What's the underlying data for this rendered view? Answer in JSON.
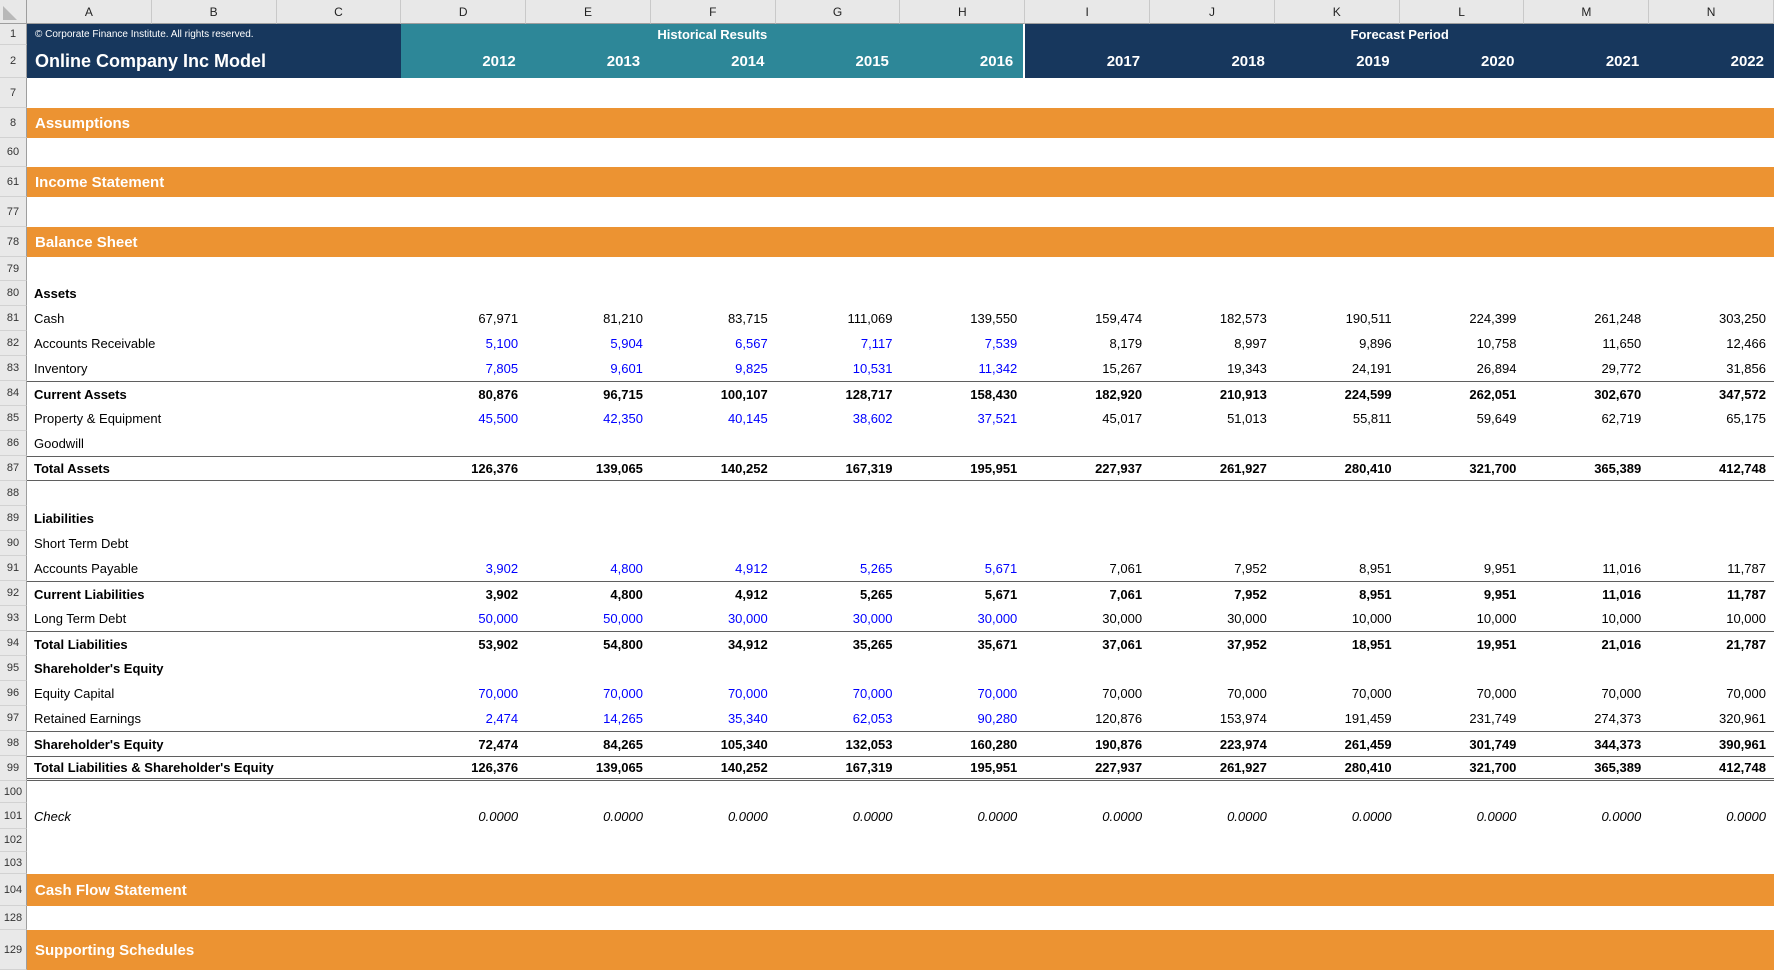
{
  "columns": [
    "A",
    "B",
    "C",
    "D",
    "E",
    "F",
    "G",
    "H",
    "I",
    "J",
    "K",
    "L",
    "M",
    "N"
  ],
  "header": {
    "row1_num": "1",
    "row2_num": "2",
    "copyright": "© Corporate Finance Institute. All rights reserved.",
    "title": "Online Company Inc Model",
    "historical_label": "Historical Results",
    "forecast_label": "Forecast Period",
    "historical_years": [
      "2012",
      "2013",
      "2014",
      "2015",
      "2016"
    ],
    "forecast_years": [
      "2017",
      "2018",
      "2019",
      "2020",
      "2021",
      "2022"
    ]
  },
  "colors": {
    "navy": "#17375D",
    "teal": "#2D8798",
    "orange": "#EC9332",
    "input_blue": "#0000FF"
  },
  "rows": [
    {
      "num": "7",
      "kind": "blank"
    },
    {
      "num": "8",
      "kind": "section",
      "label": "Assumptions"
    },
    {
      "num": "60",
      "kind": "blank"
    },
    {
      "num": "61",
      "kind": "section",
      "label": "Income Statement"
    },
    {
      "num": "77",
      "kind": "blank"
    },
    {
      "num": "78",
      "kind": "section",
      "label": "Balance Sheet"
    },
    {
      "num": "79",
      "kind": "blank"
    },
    {
      "num": "80",
      "kind": "group",
      "label": "Assets"
    },
    {
      "num": "81",
      "kind": "data",
      "label": "Cash",
      "hist_blue": false,
      "values": [
        "67,971",
        "81,210",
        "83,715",
        "111,069",
        "139,550",
        "159,474",
        "182,573",
        "190,511",
        "224,399",
        "261,248",
        "303,250"
      ]
    },
    {
      "num": "82",
      "kind": "data",
      "label": "Accounts Receivable",
      "hist_blue": true,
      "values": [
        "5,100",
        "5,904",
        "6,567",
        "7,117",
        "7,539",
        "8,179",
        "8,997",
        "9,896",
        "10,758",
        "11,650",
        "12,466"
      ]
    },
    {
      "num": "83",
      "kind": "data",
      "label": "Inventory",
      "hist_blue": true,
      "values": [
        "7,805",
        "9,601",
        "9,825",
        "10,531",
        "11,342",
        "15,267",
        "19,343",
        "24,191",
        "26,894",
        "29,772",
        "31,856"
      ]
    },
    {
      "num": "84",
      "kind": "total",
      "border": "top",
      "label": "Current Assets",
      "values": [
        "80,876",
        "96,715",
        "100,107",
        "128,717",
        "158,430",
        "182,920",
        "210,913",
        "224,599",
        "262,051",
        "302,670",
        "347,572"
      ]
    },
    {
      "num": "85",
      "kind": "data",
      "label": "Property & Equipment",
      "hist_blue": true,
      "values": [
        "45,500",
        "42,350",
        "40,145",
        "38,602",
        "37,521",
        "45,017",
        "51,013",
        "55,811",
        "59,649",
        "62,719",
        "65,175"
      ]
    },
    {
      "num": "86",
      "kind": "data",
      "label": "Goodwill",
      "hist_blue": false,
      "values": [
        "",
        "",
        "",
        "",
        "",
        "",
        "",
        "",
        "",
        "",
        ""
      ]
    },
    {
      "num": "87",
      "kind": "total",
      "border": "topbottom",
      "label": "Total Assets",
      "values": [
        "126,376",
        "139,065",
        "140,252",
        "167,319",
        "195,951",
        "227,937",
        "261,927",
        "280,410",
        "321,700",
        "365,389",
        "412,748"
      ]
    },
    {
      "num": "88",
      "kind": "blank"
    },
    {
      "num": "89",
      "kind": "group",
      "label": "Liabilities"
    },
    {
      "num": "90",
      "kind": "data",
      "label": "Short Term Debt",
      "hist_blue": false,
      "values": [
        "",
        "",
        "",
        "",
        "",
        "",
        "",
        "",
        "",
        "",
        ""
      ]
    },
    {
      "num": "91",
      "kind": "data",
      "label": "Accounts Payable",
      "hist_blue": true,
      "values": [
        "3,902",
        "4,800",
        "4,912",
        "5,265",
        "5,671",
        "7,061",
        "7,952",
        "8,951",
        "9,951",
        "11,016",
        "11,787"
      ]
    },
    {
      "num": "92",
      "kind": "total",
      "border": "top",
      "label": "Current Liabilities",
      "values": [
        "3,902",
        "4,800",
        "4,912",
        "5,265",
        "5,671",
        "7,061",
        "7,952",
        "8,951",
        "9,951",
        "11,016",
        "11,787"
      ]
    },
    {
      "num": "93",
      "kind": "data",
      "label": "Long Term Debt",
      "hist_blue": true,
      "values": [
        "50,000",
        "50,000",
        "30,000",
        "30,000",
        "30,000",
        "30,000",
        "30,000",
        "10,000",
        "10,000",
        "10,000",
        "10,000"
      ]
    },
    {
      "num": "94",
      "kind": "total",
      "border": "top",
      "label": "Total Liabilities",
      "values": [
        "53,902",
        "54,800",
        "34,912",
        "35,265",
        "35,671",
        "37,061",
        "37,952",
        "18,951",
        "19,951",
        "21,016",
        "21,787"
      ]
    },
    {
      "num": "95",
      "kind": "group",
      "label": "Shareholder's Equity"
    },
    {
      "num": "96",
      "kind": "data",
      "label": "Equity Capital",
      "hist_blue": true,
      "values": [
        "70,000",
        "70,000",
        "70,000",
        "70,000",
        "70,000",
        "70,000",
        "70,000",
        "70,000",
        "70,000",
        "70,000",
        "70,000"
      ]
    },
    {
      "num": "97",
      "kind": "data",
      "label": "Retained Earnings",
      "hist_blue": true,
      "values": [
        "2,474",
        "14,265",
        "35,340",
        "62,053",
        "90,280",
        "120,876",
        "153,974",
        "191,459",
        "231,749",
        "274,373",
        "320,961"
      ]
    },
    {
      "num": "98",
      "kind": "total",
      "border": "top",
      "label": "Shareholder's Equity",
      "values": [
        "72,474",
        "84,265",
        "105,340",
        "132,053",
        "160,280",
        "190,876",
        "223,974",
        "261,459",
        "301,749",
        "344,373",
        "390,961"
      ]
    },
    {
      "num": "99",
      "kind": "total",
      "border": "grand",
      "label": "Total Liabilities & Shareholder's Equity",
      "values": [
        "126,376",
        "139,065",
        "140,252",
        "167,319",
        "195,951",
        "227,937",
        "261,927",
        "280,410",
        "321,700",
        "365,389",
        "412,748"
      ]
    },
    {
      "num": "100",
      "kind": "blank"
    },
    {
      "num": "101",
      "kind": "check",
      "label": "Check",
      "values": [
        "0.0000",
        "0.0000",
        "0.0000",
        "0.0000",
        "0.0000",
        "0.0000",
        "0.0000",
        "0.0000",
        "0.0000",
        "0.0000",
        "0.0000"
      ]
    },
    {
      "num": "102",
      "kind": "blank"
    },
    {
      "num": "103",
      "kind": "blank"
    },
    {
      "num": "104",
      "kind": "section",
      "label": "Cash Flow Statement"
    },
    {
      "num": "128",
      "kind": "blank"
    },
    {
      "num": "129",
      "kind": "section",
      "label": "Supporting Schedules"
    }
  ]
}
